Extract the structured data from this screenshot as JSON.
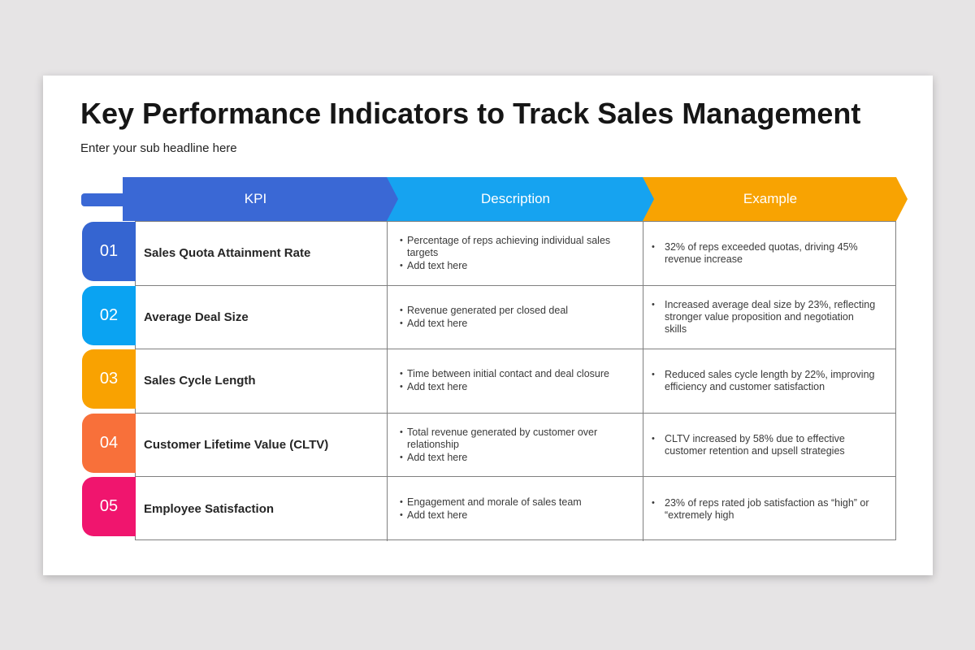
{
  "slide": {
    "title": "Key Performance Indicators to Track Sales Management",
    "subtitle": "Enter your sub headline here"
  },
  "colors": {
    "page_background": "#e6e4e5",
    "slide_background": "#ffffff",
    "table_border": "#808080",
    "header_kpi": "#3a68d5",
    "header_description": "#16a3f0",
    "header_example": "#f8a302",
    "tail_bar": "#3a68d5"
  },
  "table": {
    "headers": [
      {
        "label": "KPI",
        "color": "#3a68d5"
      },
      {
        "label": "Description",
        "color": "#16a3f0"
      },
      {
        "label": "Example",
        "color": "#f8a302"
      }
    ],
    "rows": [
      {
        "number": "01",
        "badge_color": "#3565d1",
        "kpi": "Sales Quota Attainment Rate",
        "description": [
          "Percentage of reps achieving individual sales targets",
          "Add text here"
        ],
        "example": [
          "32% of reps exceeded quotas, driving 45% revenue increase"
        ]
      },
      {
        "number": "02",
        "badge_color": "#0aa3f2",
        "kpi": "Average Deal Size",
        "description": [
          "Revenue generated per closed deal",
          "Add text here"
        ],
        "example": [
          "Increased average deal size by 23%, reflecting stronger value proposition and negotiation skills"
        ]
      },
      {
        "number": "03",
        "badge_color": "#f9a201",
        "kpi": "Sales Cycle Length",
        "description": [
          "Time between initial contact and deal closure",
          "Add text here"
        ],
        "example": [
          "Reduced sales cycle length by 22%, improving efficiency and customer satisfaction"
        ]
      },
      {
        "number": "04",
        "badge_color": "#f8703a",
        "kpi": "Customer Lifetime Value (CLTV)",
        "description": [
          "Total revenue generated by customer over relationship",
          "Add text here"
        ],
        "example": [
          "CLTV increased by 58% due to effective customer retention and upsell strategies"
        ]
      },
      {
        "number": "05",
        "badge_color": "#f0156e",
        "kpi": "Employee Satisfaction",
        "description": [
          "Engagement and morale of sales team",
          "Add text here"
        ],
        "example": [
          "23% of reps rated job satisfaction as “high” or “extremely high"
        ]
      }
    ]
  }
}
